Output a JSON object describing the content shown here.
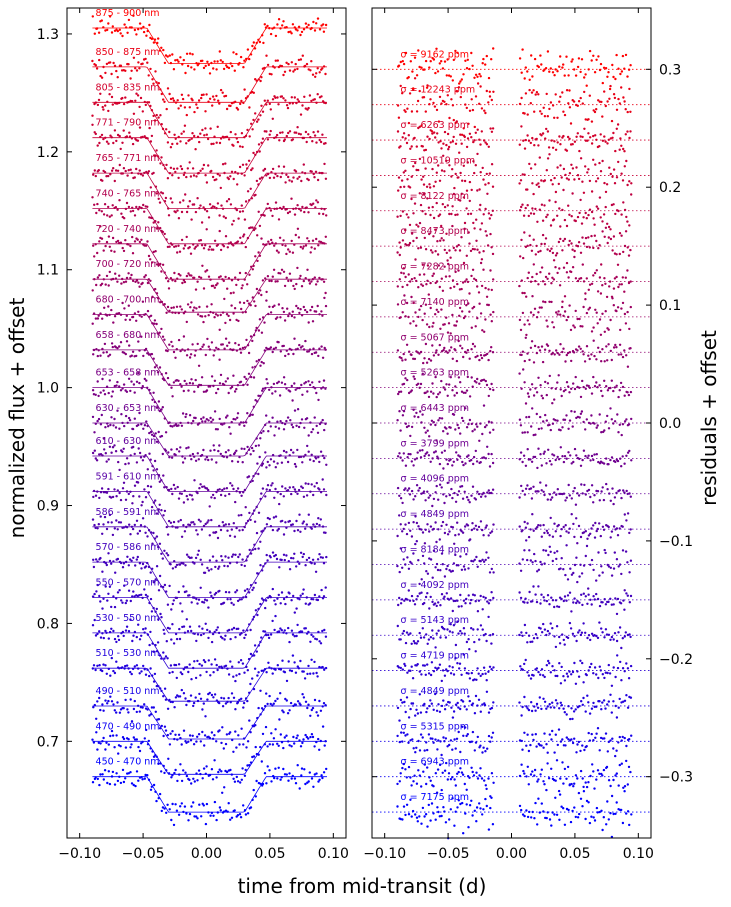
{
  "chart_data": [
    {
      "type": "scatter",
      "title": "",
      "xlabel": "time from mid-transit (d)",
      "ylabel": "normalized flux + offset",
      "xlim": [
        -0.11,
        0.11
      ],
      "ylim": [
        0.618,
        1.322
      ],
      "xticks": [
        -0.1,
        -0.05,
        0.0,
        0.05,
        0.1
      ],
      "xtick_labels": [
        "−0.10",
        "−0.05",
        "0.00",
        "0.05",
        "0.10"
      ],
      "yticks": [
        0.7,
        0.8,
        0.9,
        1.0,
        1.1,
        1.2,
        1.3
      ],
      "ytick_labels": [
        "0.7",
        "0.8",
        "0.9",
        "1.0",
        "1.1",
        "1.2",
        "1.3"
      ],
      "transit": {
        "ingress_start": -0.047,
        "full_start": -0.03,
        "full_end": 0.03,
        "egress_end": 0.047,
        "x_start": -0.09,
        "x_end": 0.095
      },
      "series": [
        {
          "name": "450 - 470 nm",
          "baseline": 0.67,
          "depth": 0.03,
          "color": "#0000ff"
        },
        {
          "name": "470 - 490 nm",
          "baseline": 0.7,
          "depth": 0.028,
          "color": "#0b00f4"
        },
        {
          "name": "490 - 510 nm",
          "baseline": 0.73,
          "depth": 0.028,
          "color": "#1600e9"
        },
        {
          "name": "510 - 530 nm",
          "baseline": 0.762,
          "depth": 0.028,
          "color": "#2100de"
        },
        {
          "name": "530 - 550 nm",
          "baseline": 0.792,
          "depth": 0.03,
          "color": "#2c00d3"
        },
        {
          "name": "550 - 570 nm",
          "baseline": 0.822,
          "depth": 0.03,
          "color": "#3700c8"
        },
        {
          "name": "570 - 586 nm",
          "baseline": 0.852,
          "depth": 0.03,
          "color": "#4200bd"
        },
        {
          "name": "586 - 591 nm",
          "baseline": 0.882,
          "depth": 0.03,
          "color": "#4d00b2"
        },
        {
          "name": "591 - 610 nm",
          "baseline": 0.912,
          "depth": 0.03,
          "color": "#5800a7"
        },
        {
          "name": "610 - 630 nm",
          "baseline": 0.942,
          "depth": 0.03,
          "color": "#63009c"
        },
        {
          "name": "630 - 653 nm",
          "baseline": 0.97,
          "depth": 0.028,
          "color": "#6f0090"
        },
        {
          "name": "653 - 658 nm",
          "baseline": 1.0,
          "depth": 0.03,
          "color": "#7a0085"
        },
        {
          "name": "658 - 680 nm",
          "baseline": 1.032,
          "depth": 0.03,
          "color": "#85007a"
        },
        {
          "name": "680 - 700 nm",
          "baseline": 1.062,
          "depth": 0.03,
          "color": "#90006f"
        },
        {
          "name": "700 - 720 nm",
          "baseline": 1.092,
          "depth": 0.028,
          "color": "#9c0063"
        },
        {
          "name": "720 - 740 nm",
          "baseline": 1.122,
          "depth": 0.03,
          "color": "#a70058"
        },
        {
          "name": "740 - 765 nm",
          "baseline": 1.152,
          "depth": 0.03,
          "color": "#b2004d"
        },
        {
          "name": "765 - 771 nm",
          "baseline": 1.182,
          "depth": 0.03,
          "color": "#bd0042"
        },
        {
          "name": "771 - 790 nm",
          "baseline": 1.212,
          "depth": 0.03,
          "color": "#c80037"
        },
        {
          "name": "805 - 835 nm",
          "baseline": 1.242,
          "depth": 0.03,
          "color": "#d3002c"
        },
        {
          "name": "850 - 875 nm",
          "baseline": 1.272,
          "depth": 0.03,
          "color": "#e90016"
        },
        {
          "name": "875 - 900 nm",
          "baseline": 1.305,
          "depth": 0.03,
          "color": "#ff0000"
        }
      ]
    },
    {
      "type": "scatter",
      "title": "",
      "xlabel": "time from mid-transit (d)",
      "ylabel": "residuals + offset",
      "xlim": [
        -0.11,
        0.11
      ],
      "ylim": [
        -0.352,
        0.352
      ],
      "xticks": [
        -0.1,
        -0.05,
        0.0,
        0.05,
        0.1
      ],
      "xtick_labels": [
        "−0.10",
        "−0.05",
        "0.00",
        "0.05",
        "0.10"
      ],
      "yticks": [
        -0.3,
        -0.2,
        -0.1,
        0.0,
        0.1,
        0.2,
        0.3
      ],
      "ytick_labels": [
        "−0.3",
        "−0.2",
        "−0.1",
        "0.0",
        "0.1",
        "0.2",
        "0.3"
      ],
      "data_gaps": [
        [
          -0.014,
          0.006
        ]
      ],
      "x_range": [
        -0.09,
        0.095
      ],
      "series": [
        {
          "label": "σ = 7175 ppm",
          "offset": -0.33,
          "sigma_ppm": 7175,
          "color": "#0000ff"
        },
        {
          "label": "σ = 6943 ppm",
          "offset": -0.3,
          "sigma_ppm": 6943,
          "color": "#0b00f4"
        },
        {
          "label": "σ = 5315 ppm",
          "offset": -0.27,
          "sigma_ppm": 5315,
          "color": "#1600e9"
        },
        {
          "label": "σ = 4849 ppm",
          "offset": -0.24,
          "sigma_ppm": 4849,
          "color": "#2100de"
        },
        {
          "label": "σ = 4719 ppm",
          "offset": -0.21,
          "sigma_ppm": 4719,
          "color": "#2c00d3"
        },
        {
          "label": "σ = 5143 ppm",
          "offset": -0.18,
          "sigma_ppm": 5143,
          "color": "#3700c8"
        },
        {
          "label": "σ = 4092 ppm",
          "offset": -0.15,
          "sigma_ppm": 4092,
          "color": "#4200bd"
        },
        {
          "label": "σ = 8184 ppm",
          "offset": -0.12,
          "sigma_ppm": 8184,
          "color": "#4d00b2"
        },
        {
          "label": "σ = 4849 ppm",
          "offset": -0.09,
          "sigma_ppm": 4849,
          "color": "#5800a7"
        },
        {
          "label": "σ = 4096 ppm",
          "offset": -0.06,
          "sigma_ppm": 4096,
          "color": "#63009c"
        },
        {
          "label": "σ = 3799 ppm",
          "offset": -0.03,
          "sigma_ppm": 3799,
          "color": "#6f0090"
        },
        {
          "label": "σ = 6443 ppm",
          "offset": 0.0,
          "sigma_ppm": 6443,
          "color": "#7a0085"
        },
        {
          "label": "σ = 5263 ppm",
          "offset": 0.03,
          "sigma_ppm": 5263,
          "color": "#85007a"
        },
        {
          "label": "σ = 5067 ppm",
          "offset": 0.06,
          "sigma_ppm": 5067,
          "color": "#90006f"
        },
        {
          "label": "σ = 7140 ppm",
          "offset": 0.09,
          "sigma_ppm": 7140,
          "color": "#9c0063"
        },
        {
          "label": "σ = 7282 ppm",
          "offset": 0.12,
          "sigma_ppm": 7282,
          "color": "#a70058"
        },
        {
          "label": "σ = 8473 ppm",
          "offset": 0.15,
          "sigma_ppm": 8473,
          "color": "#b2004d"
        },
        {
          "label": "σ = 8122 ppm",
          "offset": 0.18,
          "sigma_ppm": 8122,
          "color": "#bd0042"
        },
        {
          "label": "σ = 10519 ppm",
          "offset": 0.21,
          "sigma_ppm": 10519,
          "color": "#c80037"
        },
        {
          "label": "σ = 6263 ppm",
          "offset": 0.24,
          "sigma_ppm": 6263,
          "color": "#d3002c"
        },
        {
          "label": "σ = 12243 ppm",
          "offset": 0.27,
          "sigma_ppm": 12243,
          "color": "#e90016"
        },
        {
          "label": "σ = 9162 ppm",
          "offset": 0.3,
          "sigma_ppm": 9162,
          "color": "#ff0000"
        }
      ]
    }
  ]
}
